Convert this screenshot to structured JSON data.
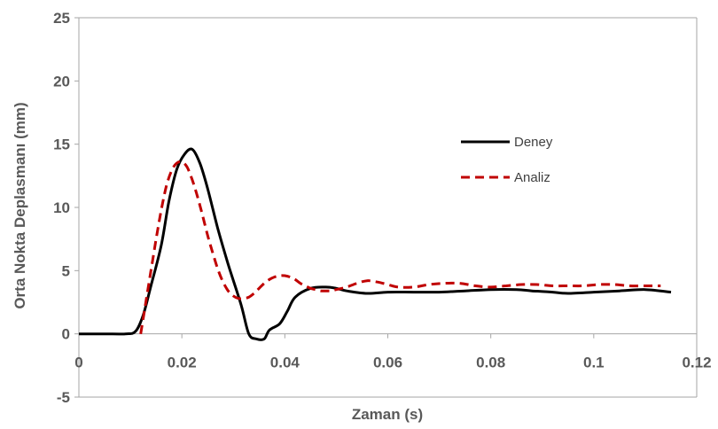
{
  "chart_data": {
    "type": "line",
    "xlabel": "Zaman (s)",
    "ylabel": "Orta Nokta Deplasmanı (mm)",
    "xlim": [
      0,
      0.12
    ],
    "ylim": [
      -5,
      25
    ],
    "x_ticks": [
      0,
      0.02,
      0.04,
      0.06,
      0.08,
      0.1,
      0.12
    ],
    "x_tick_labels": [
      "0",
      "0.02",
      "0.04",
      "0.06",
      "0.08",
      "0.1",
      "0.12"
    ],
    "y_ticks": [
      -5,
      0,
      5,
      10,
      15,
      20,
      25
    ],
    "y_tick_labels": [
      "-5",
      "0",
      "5",
      "10",
      "15",
      "20",
      "25"
    ],
    "grid": false,
    "legend_position": "right",
    "series": [
      {
        "name": "Deney",
        "color": "#000000",
        "style": "solid",
        "x": [
          0,
          0.005,
          0.009,
          0.011,
          0.0125,
          0.014,
          0.016,
          0.0175,
          0.019,
          0.0205,
          0.022,
          0.0235,
          0.025,
          0.027,
          0.029,
          0.0315,
          0.033,
          0.0345,
          0.036,
          0.037,
          0.039,
          0.0405,
          0.042,
          0.045,
          0.048,
          0.05,
          0.052,
          0.056,
          0.06,
          0.065,
          0.07,
          0.075,
          0.08,
          0.085,
          0.088,
          0.092,
          0.095,
          0.1,
          0.105,
          0.11,
          0.115
        ],
        "y": [
          0,
          0,
          0,
          0.2,
          1.5,
          3.8,
          7,
          10.5,
          13,
          14.2,
          14.6,
          13.5,
          11.5,
          8.3,
          5.5,
          2.3,
          0,
          -0.4,
          -0.4,
          0.3,
          0.8,
          1.8,
          2.9,
          3.6,
          3.7,
          3.6,
          3.4,
          3.2,
          3.3,
          3.3,
          3.3,
          3.4,
          3.5,
          3.5,
          3.4,
          3.3,
          3.2,
          3.3,
          3.4,
          3.5,
          3.3
        ]
      },
      {
        "name": "Analiz",
        "color": "#c00000",
        "style": "dashed",
        "x": [
          0.012,
          0.013,
          0.014,
          0.015,
          0.016,
          0.017,
          0.018,
          0.019,
          0.02,
          0.021,
          0.022,
          0.023,
          0.024,
          0.025,
          0.026,
          0.027,
          0.028,
          0.029,
          0.03,
          0.031,
          0.032,
          0.033,
          0.034,
          0.035,
          0.036,
          0.037,
          0.038,
          0.039,
          0.04,
          0.041,
          0.042,
          0.043,
          0.044,
          0.045,
          0.046,
          0.047,
          0.048,
          0.049,
          0.05,
          0.052,
          0.054,
          0.056,
          0.058,
          0.06,
          0.062,
          0.065,
          0.068,
          0.071,
          0.074,
          0.077,
          0.08,
          0.083,
          0.086,
          0.089,
          0.092,
          0.095,
          0.098,
          0.101,
          0.104,
          0.107,
          0.11,
          0.113
        ],
        "y": [
          0,
          2.5,
          5,
          7.5,
          9.8,
          11.7,
          12.9,
          13.5,
          13.6,
          13.2,
          12.2,
          10.9,
          9.4,
          7.8,
          6.4,
          5.1,
          4.1,
          3.4,
          3,
          2.8,
          2.8,
          2.9,
          3.2,
          3.6,
          4,
          4.3,
          4.5,
          4.6,
          4.6,
          4.5,
          4.3,
          4,
          3.8,
          3.6,
          3.5,
          3.4,
          3.4,
          3.4,
          3.5,
          3.7,
          4,
          4.2,
          4.1,
          3.9,
          3.7,
          3.7,
          3.9,
          4,
          4,
          3.8,
          3.7,
          3.8,
          3.9,
          3.9,
          3.8,
          3.8,
          3.8,
          3.9,
          3.9,
          3.8,
          3.8,
          3.8
        ]
      }
    ]
  }
}
